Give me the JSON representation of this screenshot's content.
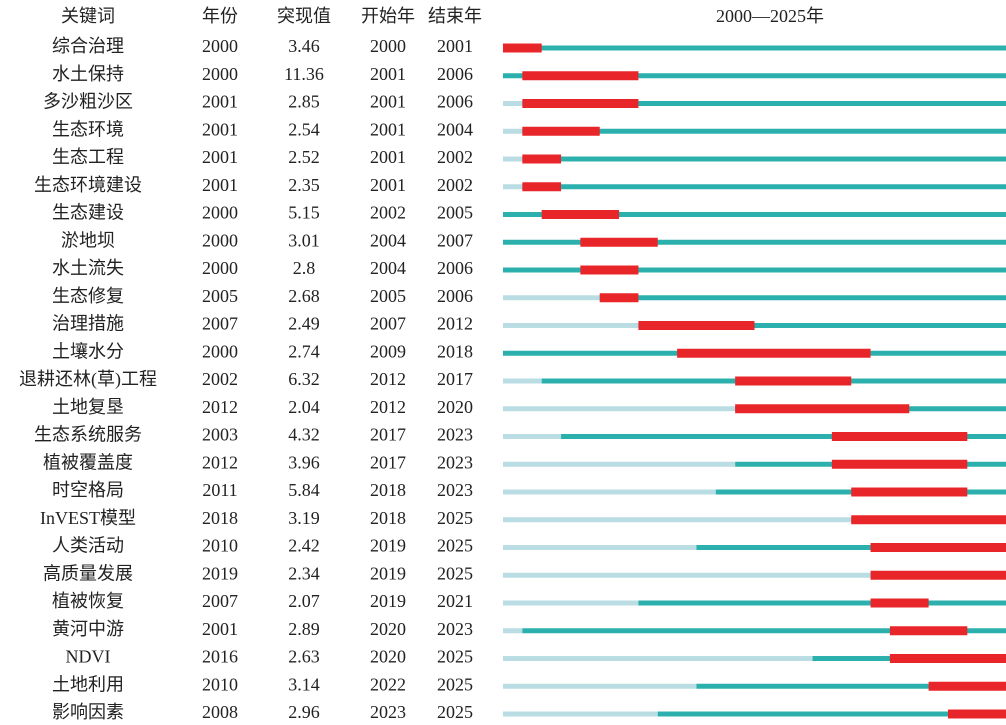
{
  "columns": [
    "关键词",
    "年份",
    "突现值",
    "开始年",
    "结束年"
  ],
  "timeline": {
    "title": "2000—2025年",
    "xlim": [
      2000,
      2025
    ]
  },
  "rows": [
    [
      "综合治理",
      2000,
      3.46,
      2000,
      2001
    ],
    [
      "水土保持",
      2000,
      11.36,
      2001,
      2006
    ],
    [
      "多沙粗沙区",
      2001,
      2.85,
      2001,
      2006
    ],
    [
      "生态环境",
      2001,
      2.54,
      2001,
      2004
    ],
    [
      "生态工程",
      2001,
      2.52,
      2001,
      2002
    ],
    [
      "生态环境建设",
      2001,
      2.35,
      2001,
      2002
    ],
    [
      "生态建设",
      2000,
      5.15,
      2002,
      2005
    ],
    [
      "淤地坝",
      2000,
      3.01,
      2004,
      2007
    ],
    [
      "水土流失",
      2000,
      2.8,
      2004,
      2006
    ],
    [
      "生态修复",
      2005,
      2.68,
      2005,
      2006
    ],
    [
      "治理措施",
      2007,
      2.49,
      2007,
      2012
    ],
    [
      "土壤水分",
      2000,
      2.74,
      2009,
      2018
    ],
    [
      "退耕还林(草)工程",
      2002,
      6.32,
      2012,
      2017
    ],
    [
      "土地复垦",
      2012,
      2.04,
      2012,
      2020
    ],
    [
      "生态系统服务",
      2003,
      4.32,
      2017,
      2023
    ],
    [
      "植被覆盖度",
      2012,
      3.96,
      2017,
      2023
    ],
    [
      "时空格局",
      2011,
      5.84,
      2018,
      2023
    ],
    [
      "InVEST模型",
      2018,
      3.19,
      2018,
      2025
    ],
    [
      "人类活动",
      2010,
      2.42,
      2019,
      2025
    ],
    [
      "高质量发展",
      2019,
      2.34,
      2019,
      2025
    ],
    [
      "植被恢复",
      2007,
      2.07,
      2019,
      2021
    ],
    [
      "黄河中游",
      2001,
      2.89,
      2020,
      2023
    ],
    [
      "NDVI",
      2016,
      2.63,
      2020,
      2025
    ],
    [
      "土地利用",
      2010,
      3.14,
      2022,
      2025
    ],
    [
      "影响因素",
      2008,
      2.96,
      2023,
      2025
    ]
  ]
}
